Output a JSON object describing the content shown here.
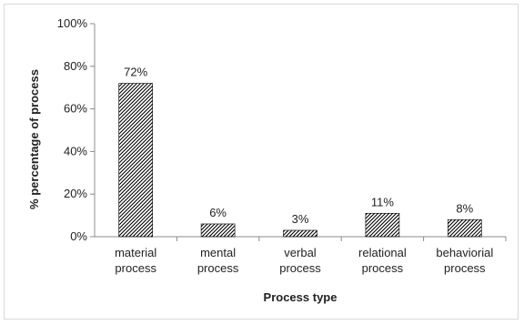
{
  "chart_data": {
    "type": "bar",
    "title": "",
    "xlabel": "Process type",
    "ylabel": "% percentage of process",
    "ylim": [
      0,
      100
    ],
    "yticks": [
      "0%",
      "20%",
      "40%",
      "60%",
      "80%",
      "100%"
    ],
    "grid": false,
    "categories": [
      [
        "material",
        "process"
      ],
      [
        "mental",
        "process"
      ],
      [
        "verbal",
        "process"
      ],
      [
        "relational",
        "process"
      ],
      [
        "behaviorial",
        "process"
      ]
    ],
    "values": [
      72,
      6,
      3,
      11,
      8
    ],
    "data_labels": [
      "72%",
      "6%",
      "3%",
      "11%",
      "8%"
    ],
    "bar_fill": "diagonal-hatch",
    "bar_color": "#000000"
  }
}
